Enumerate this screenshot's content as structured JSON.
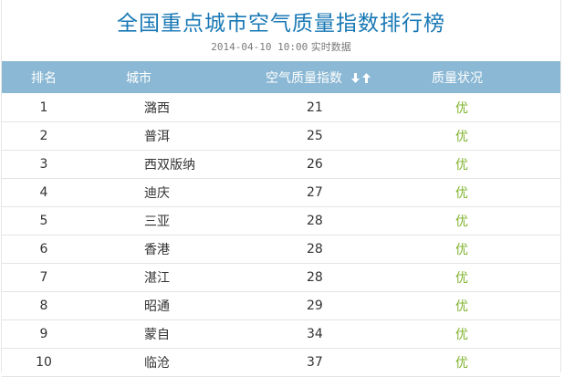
{
  "header": {
    "title": "全国重点城市空气质量指数排行榜",
    "timestamp": "2014-04-10 10:00",
    "realtime_label": "实时数据"
  },
  "table": {
    "columns": {
      "rank": "排名",
      "city": "城市",
      "aqi": "空气质量指数",
      "quality": "质量状况"
    },
    "sort_icons": [
      "arrow-down-icon",
      "arrow-up-icon"
    ],
    "rows": [
      {
        "rank": "1",
        "city": "潞西",
        "aqi": "21",
        "quality": "优"
      },
      {
        "rank": "2",
        "city": "普洱",
        "aqi": "25",
        "quality": "优"
      },
      {
        "rank": "3",
        "city": "西双版纳",
        "aqi": "26",
        "quality": "优"
      },
      {
        "rank": "4",
        "city": "迪庆",
        "aqi": "27",
        "quality": "优"
      },
      {
        "rank": "5",
        "city": "三亚",
        "aqi": "28",
        "quality": "优"
      },
      {
        "rank": "6",
        "city": "香港",
        "aqi": "28",
        "quality": "优"
      },
      {
        "rank": "7",
        "city": "湛江",
        "aqi": "28",
        "quality": "优"
      },
      {
        "rank": "8",
        "city": "昭通",
        "aqi": "29",
        "quality": "优"
      },
      {
        "rank": "9",
        "city": "蒙自",
        "aqi": "34",
        "quality": "优"
      },
      {
        "rank": "10",
        "city": "临沧",
        "aqi": "37",
        "quality": "优"
      }
    ]
  },
  "colors": {
    "title": "#1878b5",
    "header_bg": "#8bb8d4",
    "quality_good": "#7fb32d"
  }
}
